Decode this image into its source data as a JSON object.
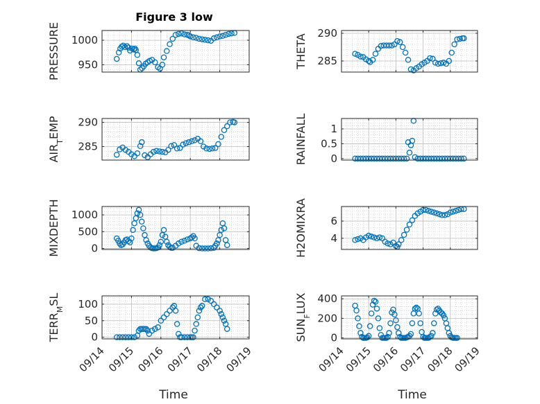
{
  "figure_title": "Figure 3 low",
  "x_axis_label": "Time",
  "x_tick_labels": [
    "09/14",
    "09/15",
    "09/16",
    "09/17",
    "09/18",
    "09/19"
  ],
  "marker_color": "#0072BD",
  "chart_data": [
    {
      "type": "scatter",
      "name": "PRESSURE",
      "ylabel": "PRESSURE",
      "yticks": [
        950,
        1000
      ],
      "ylim": [
        935,
        1020
      ],
      "x": [
        0.5,
        0.57,
        0.62,
        0.67,
        0.72,
        0.78,
        0.85,
        0.9,
        0.95,
        1.02,
        1.08,
        1.12,
        1.15,
        1.2,
        1.25,
        1.3,
        1.36,
        1.42,
        1.48,
        1.55,
        1.62,
        1.7,
        1.8,
        1.9,
        1.97,
        2.05,
        2.1,
        2.2,
        2.3,
        2.4,
        2.5,
        2.6,
        2.7,
        2.8,
        2.9,
        2.95,
        3.0,
        3.1,
        3.2,
        3.3,
        3.4,
        3.5,
        3.6,
        3.7,
        3.8,
        3.9,
        4.0,
        4.1,
        4.2,
        4.3,
        4.4,
        4.5
      ],
      "y": [
        962,
        975,
        983,
        987,
        989,
        986,
        988,
        985,
        979,
        983,
        981,
        983,
        980,
        970,
        953,
        940,
        943,
        947,
        952,
        955,
        958,
        960,
        955,
        945,
        942,
        950,
        965,
        978,
        992,
        1003,
        1011,
        1013,
        1014,
        1012,
        1011,
        1010,
        1008,
        1006,
        1005,
        1003,
        1002,
        1001,
        1000,
        999,
        1004,
        1006,
        1008,
        1009,
        1011,
        1013,
        1014,
        1015
      ]
    },
    {
      "type": "scatter",
      "name": "THETA",
      "ylabel": "THETA",
      "yticks": [
        285,
        290
      ],
      "ylim": [
        283,
        290.5
      ],
      "x": [
        0.5,
        0.6,
        0.7,
        0.8,
        0.9,
        1.0,
        1.05,
        1.15,
        1.25,
        1.35,
        1.45,
        1.55,
        1.65,
        1.75,
        1.85,
        1.95,
        2.05,
        2.15,
        2.25,
        2.35,
        2.45,
        2.55,
        2.65,
        2.75,
        2.85,
        2.95,
        3.05,
        3.15,
        3.25,
        3.35,
        3.45,
        3.55,
        3.65,
        3.75,
        3.85,
        3.95,
        4.05,
        4.15,
        4.25,
        4.35,
        4.45,
        4.5
      ],
      "y": [
        286.3,
        286.1,
        285.8,
        285.7,
        285.3,
        285.0,
        284.8,
        285.2,
        286.3,
        287.2,
        287.7,
        287.8,
        287.8,
        287.8,
        287.8,
        288.0,
        288.6,
        288.4,
        287.5,
        286.5,
        285.2,
        283.5,
        283.3,
        283.7,
        284.0,
        284.4,
        284.7,
        285.0,
        285.5,
        285.4,
        284.7,
        284.5,
        284.6,
        284.7,
        284.5,
        285.0,
        286.5,
        288.0,
        288.9,
        289.0,
        289.1,
        289.1
      ]
    },
    {
      "type": "scatter",
      "name": "AIR_TEMP",
      "ylabel": "AIR_TEMP",
      "yticks": [
        285,
        290
      ],
      "ylim": [
        282.2,
        290.8
      ],
      "x": [
        0.5,
        0.6,
        0.7,
        0.8,
        0.9,
        1.0,
        1.1,
        1.2,
        1.3,
        1.35,
        1.45,
        1.55,
        1.65,
        1.75,
        1.85,
        1.95,
        2.05,
        2.15,
        2.25,
        2.35,
        2.45,
        2.55,
        2.65,
        2.75,
        2.85,
        2.95,
        3.05,
        3.15,
        3.25,
        3.35,
        3.45,
        3.55,
        3.65,
        3.75,
        3.85,
        3.95,
        4.05,
        4.15,
        4.25,
        4.35,
        4.45,
        4.5
      ],
      "y": [
        283.3,
        284.4,
        284.8,
        284.3,
        283.9,
        283.4,
        283.0,
        283.6,
        285.1,
        285.9,
        283.2,
        282.8,
        283.4,
        283.9,
        284.1,
        284.0,
        283.9,
        283.8,
        284.3,
        285.1,
        285.3,
        284.6,
        284.7,
        285.4,
        285.7,
        285.9,
        286.1,
        286.3,
        286.6,
        286.1,
        285.0,
        284.6,
        284.5,
        284.6,
        284.7,
        285.5,
        287.0,
        288.4,
        289.2,
        290.0,
        290.1,
        290.0
      ]
    },
    {
      "type": "scatter",
      "name": "RAINFALL",
      "ylabel": "RAINFALL",
      "yticks": [
        0,
        0.5,
        1
      ],
      "ylim": [
        -0.05,
        1.35
      ],
      "x": [
        0.5,
        0.6,
        0.7,
        0.8,
        0.9,
        1.0,
        1.1,
        1.2,
        1.3,
        1.4,
        1.5,
        1.6,
        1.7,
        1.8,
        1.9,
        2.0,
        2.1,
        2.2,
        2.3,
        2.4,
        2.45,
        2.5,
        2.55,
        2.6,
        2.65,
        2.7,
        2.8,
        2.9,
        3.0,
        3.1,
        3.2,
        3.3,
        3.4,
        3.5,
        3.6,
        3.7,
        3.8,
        3.9,
        4.0,
        4.1,
        4.2,
        4.3,
        4.4,
        4.5
      ],
      "y": [
        0,
        0,
        0,
        0,
        0,
        0,
        0,
        0,
        0,
        0,
        0,
        0,
        0,
        0,
        0,
        0,
        0,
        0,
        0,
        0,
        0.55,
        0.2,
        0.45,
        0.6,
        1.27,
        0.05,
        0,
        0,
        0,
        0,
        0,
        0,
        0,
        0,
        0,
        0,
        0,
        0,
        0,
        0,
        0,
        0,
        0,
        0
      ]
    },
    {
      "type": "scatter",
      "name": "MIXDEPTH",
      "ylabel": "MIXDEPTH",
      "yticks": [
        0,
        500,
        1000
      ],
      "ylim": [
        -30,
        1250
      ],
      "x": [
        0.5,
        0.55,
        0.6,
        0.65,
        0.7,
        0.75,
        0.8,
        0.85,
        0.9,
        0.95,
        1.0,
        1.05,
        1.1,
        1.15,
        1.2,
        1.25,
        1.3,
        1.35,
        1.4,
        1.45,
        1.5,
        1.55,
        1.6,
        1.65,
        1.7,
        1.75,
        1.8,
        1.85,
        1.9,
        1.95,
        2.0,
        2.05,
        2.1,
        2.15,
        2.2,
        2.25,
        2.3,
        2.35,
        2.4,
        2.5,
        2.6,
        2.7,
        2.8,
        2.9,
        3.0,
        3.05,
        3.1,
        3.15,
        3.2,
        3.3,
        3.4,
        3.5,
        3.6,
        3.7,
        3.8,
        3.85,
        3.9,
        3.95,
        4.0,
        4.05,
        4.1,
        4.15,
        4.2,
        4.25
      ],
      "y": [
        300,
        230,
        150,
        100,
        120,
        180,
        250,
        270,
        220,
        180,
        300,
        550,
        750,
        900,
        1050,
        1150,
        1000,
        800,
        600,
        400,
        250,
        150,
        80,
        30,
        10,
        0,
        0,
        10,
        30,
        100,
        200,
        400,
        550,
        350,
        200,
        100,
        50,
        20,
        20,
        80,
        150,
        200,
        230,
        270,
        300,
        330,
        370,
        300,
        80,
        10,
        0,
        0,
        0,
        5,
        20,
        80,
        150,
        250,
        400,
        550,
        750,
        600,
        250,
        100
      ]
    },
    {
      "type": "scatter",
      "name": "H2OMIXRA",
      "ylabel": "H2OMIXRA",
      "yticks": [
        4,
        6
      ],
      "ylim": [
        2.7,
        7.7
      ],
      "x": [
        0.5,
        0.6,
        0.7,
        0.8,
        0.9,
        1.0,
        1.1,
        1.2,
        1.3,
        1.4,
        1.5,
        1.6,
        1.7,
        1.8,
        1.9,
        2.0,
        2.05,
        2.1,
        2.2,
        2.3,
        2.4,
        2.5,
        2.6,
        2.7,
        2.8,
        2.9,
        3.0,
        3.1,
        3.2,
        3.3,
        3.4,
        3.5,
        3.6,
        3.7,
        3.8,
        3.9,
        4.0,
        4.1,
        4.2,
        4.3,
        4.4,
        4.5
      ],
      "y": [
        3.8,
        3.9,
        4.0,
        3.8,
        4.1,
        4.3,
        4.2,
        4.1,
        4.0,
        4.1,
        4.0,
        3.6,
        3.4,
        3.3,
        3.5,
        3.1,
        3.0,
        3.3,
        3.8,
        4.4,
        5.0,
        5.6,
        6.1,
        6.6,
        6.9,
        7.1,
        7.3,
        7.3,
        7.2,
        7.1,
        7.0,
        6.9,
        6.8,
        6.7,
        6.7,
        6.8,
        7.0,
        7.1,
        7.2,
        7.3,
        7.4,
        7.4
      ]
    },
    {
      "type": "scatter",
      "name": "TERR_MSL",
      "ylabel": "TERR_MSL",
      "yticks": [
        0,
        50,
        100
      ],
      "ylim": [
        -5,
        125
      ],
      "x": [
        0.5,
        0.6,
        0.7,
        0.8,
        0.9,
        1.0,
        1.1,
        1.2,
        1.25,
        1.3,
        1.35,
        1.4,
        1.45,
        1.5,
        1.55,
        1.6,
        1.7,
        1.8,
        1.9,
        2.0,
        2.1,
        2.2,
        2.3,
        2.4,
        2.45,
        2.5,
        2.55,
        2.6,
        2.65,
        2.7,
        2.8,
        2.9,
        3.0,
        3.05,
        3.1,
        3.15,
        3.2,
        3.25,
        3.3,
        3.35,
        3.4,
        3.5,
        3.6,
        3.7,
        3.8,
        3.9,
        4.0,
        4.05,
        4.1,
        4.15,
        4.2,
        4.25
      ],
      "y": [
        0,
        0,
        0,
        0,
        0,
        0,
        0,
        5,
        20,
        25,
        25,
        25,
        25,
        25,
        20,
        10,
        20,
        25,
        30,
        50,
        60,
        70,
        80,
        90,
        95,
        80,
        40,
        10,
        0,
        0,
        0,
        0,
        0,
        0,
        0,
        20,
        40,
        60,
        80,
        90,
        95,
        115,
        115,
        110,
        100,
        90,
        80,
        70,
        60,
        50,
        40,
        25
      ]
    },
    {
      "type": "scatter",
      "name": "SUN_FLUX",
      "ylabel": "SUN_FLUX",
      "yticks": [
        0,
        200,
        400
      ],
      "ylim": [
        -10,
        430
      ],
      "x": [
        0.5,
        0.55,
        0.6,
        0.65,
        0.7,
        0.75,
        0.8,
        0.85,
        0.9,
        0.95,
        1.0,
        1.05,
        1.1,
        1.15,
        1.2,
        1.25,
        1.3,
        1.35,
        1.4,
        1.45,
        1.5,
        1.55,
        1.6,
        1.65,
        1.7,
        1.75,
        1.8,
        1.85,
        1.9,
        1.95,
        2.0,
        2.05,
        2.1,
        2.15,
        2.2,
        2.25,
        2.3,
        2.35,
        2.4,
        2.45,
        2.5,
        2.55,
        2.6,
        2.65,
        2.7,
        2.75,
        2.8,
        2.85,
        2.9,
        2.95,
        3.0,
        3.05,
        3.1,
        3.15,
        3.2,
        3.25,
        3.3,
        3.35,
        3.4,
        3.45,
        3.5,
        3.55,
        3.6,
        3.65,
        3.7,
        3.75,
        3.8,
        3.85,
        3.9,
        3.95,
        4.0,
        4.05,
        4.1,
        4.15,
        4.2,
        4.25
      ],
      "y": [
        330,
        280,
        200,
        120,
        50,
        10,
        0,
        0,
        0,
        5,
        20,
        120,
        250,
        340,
        380,
        370,
        300,
        200,
        100,
        30,
        0,
        0,
        0,
        0,
        10,
        50,
        150,
        260,
        290,
        240,
        180,
        110,
        50,
        10,
        0,
        0,
        0,
        0,
        5,
        10,
        20,
        40,
        150,
        250,
        300,
        310,
        300,
        250,
        150,
        60,
        10,
        0,
        0,
        0,
        0,
        10,
        20,
        50,
        150,
        250,
        290,
        300,
        280,
        260,
        250,
        230,
        200,
        150,
        100,
        50,
        20,
        5,
        0,
        0,
        0,
        0
      ]
    }
  ]
}
